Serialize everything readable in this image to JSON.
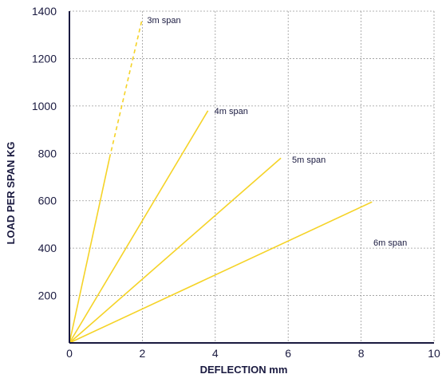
{
  "chart_data": {
    "type": "line",
    "xlabel": "DEFLECTION mm",
    "ylabel": "LOAD PER SPAN KG",
    "xlim": [
      0,
      10
    ],
    "ylim": [
      0,
      1400
    ],
    "x_ticks": [
      "0",
      "2",
      "4",
      "6",
      "8",
      "10"
    ],
    "y_ticks": [
      "200",
      "400",
      "600",
      "800",
      "1000",
      "1200",
      "1400"
    ],
    "grid": true,
    "colors": {
      "line": "#f5d327",
      "grid": "#9a9a9a",
      "axis": "#1a1a40",
      "text": "#1a1a40"
    },
    "series": [
      {
        "name": "3m span",
        "points": [
          [
            0,
            0
          ],
          [
            1.1,
            780
          ],
          [
            2.0,
            1370
          ]
        ],
        "dashed_from": 1
      },
      {
        "name": "4m span",
        "points": [
          [
            0,
            0
          ],
          [
            3.8,
            980
          ]
        ]
      },
      {
        "name": "5m span",
        "points": [
          [
            0,
            0
          ],
          [
            5.8,
            780
          ]
        ]
      },
      {
        "name": "6m span",
        "points": [
          [
            0,
            0
          ],
          [
            8.3,
            595
          ]
        ]
      }
    ]
  }
}
